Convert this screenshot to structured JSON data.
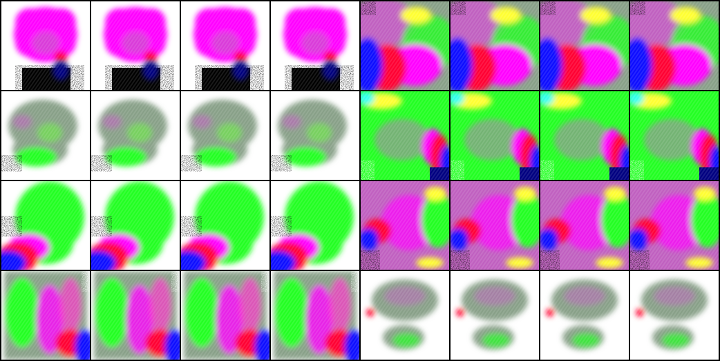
{
  "grid": {
    "rows": 4,
    "cols": 8
  },
  "colors": {
    "white": "#ffffff",
    "black": "#000000",
    "magenta": "#ff00ff",
    "pink": "#ff33cc",
    "mauve": "#c060c0",
    "gray_green": "#88a088",
    "green": "#22ff22",
    "lime": "#66ff33",
    "red": "#ff0033",
    "blue": "#1010ff",
    "navy": "#000080",
    "yellow": "#ffff33",
    "cyan": "#33ffee"
  },
  "patterns": [
    {
      "id": "A",
      "icon": "magenta-blob-black-base-image"
    },
    {
      "id": "B",
      "icon": "magenta-field-blue-red-lower-left-image"
    },
    {
      "id": "C",
      "icon": "gray-green-blob-white-bg-image"
    },
    {
      "id": "D",
      "icon": "green-field-blue-red-right-image"
    },
    {
      "id": "E",
      "icon": "green-blob-blue-corner-image"
    },
    {
      "id": "F",
      "icon": "mauve-field-blue-red-left-image"
    },
    {
      "id": "G",
      "icon": "green-magenta-field-blue-bottom-right-image"
    },
    {
      "id": "H",
      "icon": "gray-mushroom-blob-white-bg-image"
    }
  ],
  "rows_layout": [
    [
      "A",
      "A",
      "A",
      "A",
      "B",
      "B",
      "B",
      "B"
    ],
    [
      "C",
      "C",
      "C",
      "C",
      "D",
      "D",
      "D",
      "D"
    ],
    [
      "E",
      "E",
      "E",
      "E",
      "F",
      "F",
      "F",
      "F"
    ],
    [
      "G",
      "G",
      "G",
      "G",
      "H",
      "H",
      "H",
      "H"
    ]
  ]
}
